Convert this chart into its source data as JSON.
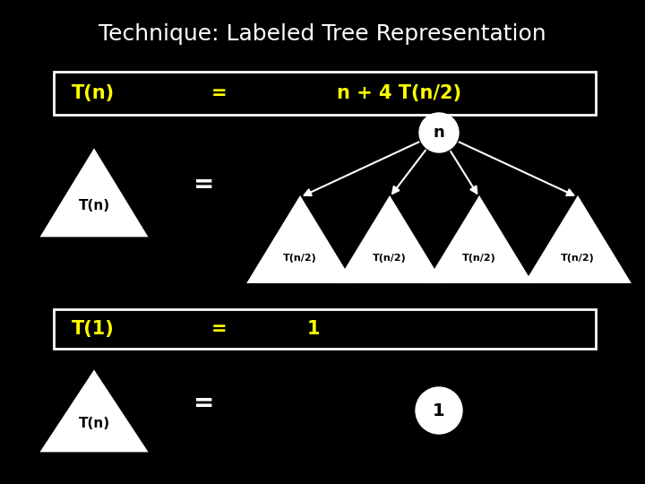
{
  "title": "Technique: Labeled Tree Representation",
  "title_color": "#ffffff",
  "title_fontsize": 18,
  "bg_color": "#000000",
  "eq1_left": "T(n)",
  "eq1_mid": "=",
  "eq1_right": "n + 4 T(n/2)",
  "eq2_left": "T(1)",
  "eq2_mid": "=",
  "eq2_right": "1",
  "eq_text_color": "#ffff00",
  "white": "#ffffff",
  "black": "#000000"
}
